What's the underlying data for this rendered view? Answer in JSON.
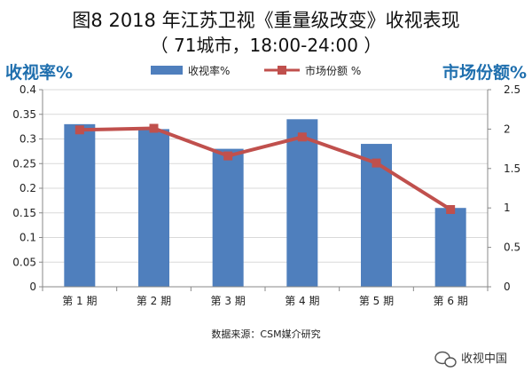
{
  "title": {
    "line1": "图8 2018 年江苏卫视《重量级改变》收视表现",
    "line2": "（ 71城市，18:00-24:00 ）"
  },
  "left_axis_title": "收视率%",
  "right_axis_title": "市场份额%",
  "source": "数据来源：CSM媒介研究",
  "watermark": "收视中国",
  "colors": {
    "bar": "#4f7fbd",
    "line": "#c0504d",
    "axis_title": "#1f6fae",
    "grid": "#d9d9d9"
  },
  "chart_data": {
    "type": "bar",
    "categories": [
      "第 1 期",
      "第 2 期",
      "第 3 期",
      "第 4 期",
      "第 5 期",
      "第 6 期"
    ],
    "series": [
      {
        "name": "收视率%",
        "type": "bar",
        "axis": "left",
        "values": [
          0.33,
          0.32,
          0.28,
          0.34,
          0.29,
          0.16
        ]
      },
      {
        "name": "市场份额 %",
        "type": "line",
        "axis": "right",
        "values": [
          1.99,
          2.01,
          1.66,
          1.9,
          1.57,
          0.98
        ]
      }
    ],
    "y_left": {
      "min": 0,
      "max": 0.4,
      "ticks": [
        "0",
        "0.05",
        "0.1",
        "0.15",
        "0.2",
        "0.25",
        "0.3",
        "0.35",
        "0.4"
      ]
    },
    "y_right": {
      "min": 0,
      "max": 2.5,
      "ticks": [
        "0",
        "0.5",
        "1",
        "1.5",
        "2",
        "2.5"
      ]
    },
    "legend_position": "top-center",
    "grid": true
  }
}
